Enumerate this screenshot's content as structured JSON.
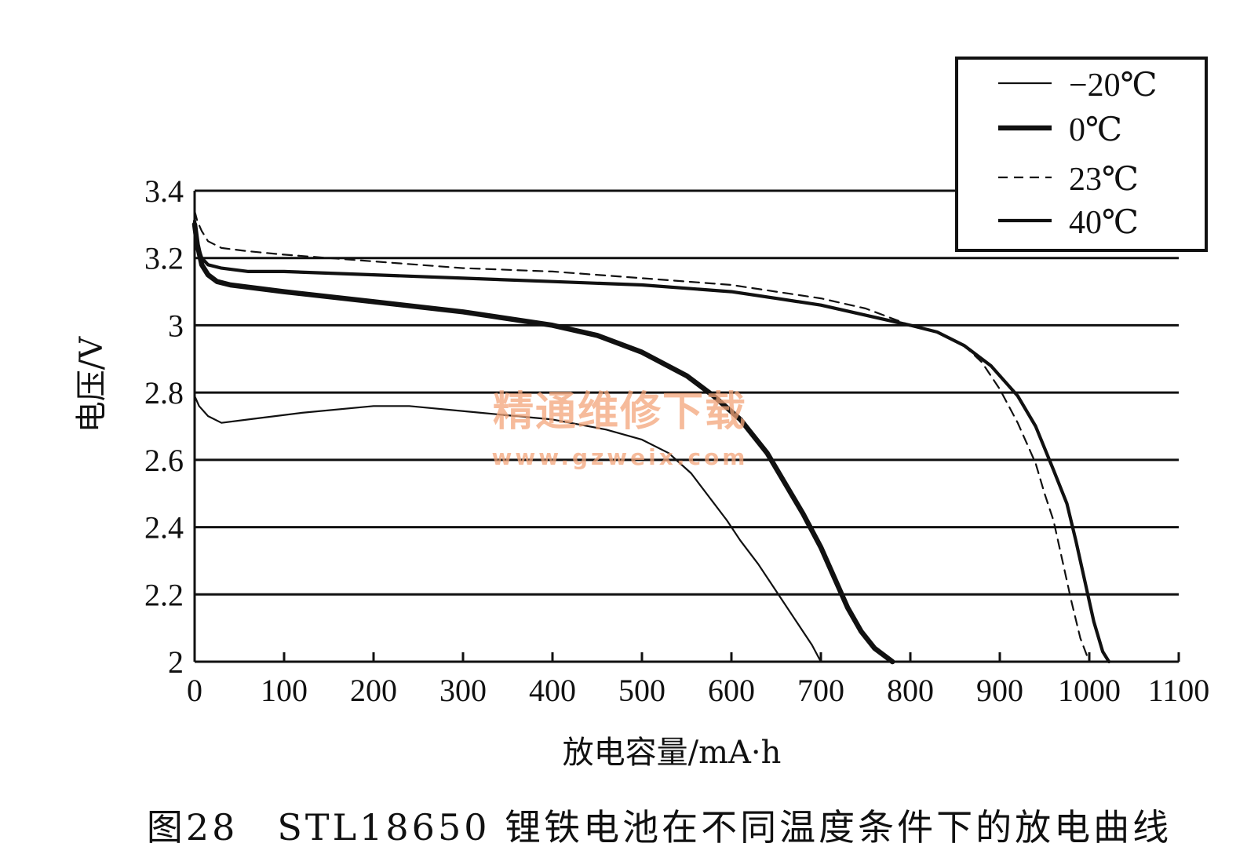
{
  "caption": "图28　STL18650 锂铁电池在不同温度条件下的放电曲线",
  "watermark": {
    "main": "精通维修下载",
    "url": "www.gzweix.com"
  },
  "colors": {
    "line": "#111111",
    "grid": "#111111",
    "watermark": "#f4a57a"
  },
  "chart_data": {
    "type": "line",
    "title": "",
    "xlabel": "放电容量/mA·h",
    "ylabel": "电压/V",
    "xlim": [
      0,
      1100
    ],
    "ylim": [
      2,
      3.4
    ],
    "x_ticks": [
      0,
      100,
      200,
      300,
      400,
      500,
      600,
      700,
      800,
      900,
      1000,
      1100
    ],
    "x_tick_labels": [
      "0",
      "100",
      "200",
      "300",
      "400",
      "500",
      "600",
      "700",
      "800",
      "900",
      "1000",
      "1100"
    ],
    "y_ticks": [
      2,
      2.2,
      2.4,
      2.6,
      2.8,
      3,
      3.2,
      3.4
    ],
    "y_tick_labels": [
      "2",
      "2.2",
      "2.4",
      "2.6",
      "2.8",
      "3",
      "3.2",
      "3.4"
    ],
    "grid": "horizontal",
    "legend_position": "top-right",
    "series": [
      {
        "name": "−20℃",
        "style": "thin",
        "x": [
          0,
          5,
          15,
          30,
          60,
          120,
          200,
          240,
          320,
          400,
          460,
          500,
          530,
          555,
          575,
          595,
          610,
          630,
          650,
          670,
          690,
          700
        ],
        "y": [
          2.79,
          2.76,
          2.73,
          2.71,
          2.72,
          2.74,
          2.76,
          2.76,
          2.74,
          2.72,
          2.69,
          2.66,
          2.62,
          2.56,
          2.49,
          2.42,
          2.36,
          2.29,
          2.21,
          2.13,
          2.05,
          2.0
        ]
      },
      {
        "name": "0℃",
        "style": "bold",
        "x": [
          0,
          3,
          8,
          15,
          25,
          40,
          100,
          200,
          300,
          400,
          450,
          500,
          550,
          580,
          610,
          640,
          660,
          680,
          700,
          710,
          720,
          730,
          745,
          760,
          775,
          780
        ],
        "y": [
          3.3,
          3.24,
          3.18,
          3.15,
          3.13,
          3.12,
          3.1,
          3.07,
          3.04,
          3.0,
          2.97,
          2.92,
          2.85,
          2.79,
          2.72,
          2.62,
          2.53,
          2.44,
          2.34,
          2.28,
          2.22,
          2.16,
          2.09,
          2.04,
          2.01,
          2.0
        ]
      },
      {
        "name": "23℃",
        "style": "dashed",
        "x": [
          0,
          3,
          8,
          15,
          30,
          60,
          100,
          200,
          300,
          400,
          500,
          600,
          650,
          700,
          750,
          800,
          830,
          860,
          880,
          900,
          920,
          940,
          950,
          960,
          970,
          980,
          990,
          1000
        ],
        "y": [
          3.34,
          3.31,
          3.28,
          3.25,
          3.23,
          3.22,
          3.21,
          3.19,
          3.17,
          3.16,
          3.14,
          3.12,
          3.1,
          3.08,
          3.05,
          3.0,
          2.98,
          2.94,
          2.89,
          2.81,
          2.71,
          2.59,
          2.5,
          2.42,
          2.3,
          2.18,
          2.07,
          2.0
        ]
      },
      {
        "name": "40℃",
        "style": "medium",
        "x": [
          0,
          3,
          8,
          15,
          30,
          60,
          100,
          200,
          300,
          400,
          500,
          600,
          650,
          700,
          750,
          800,
          830,
          860,
          890,
          920,
          940,
          960,
          975,
          985,
          995,
          1005,
          1015,
          1022
        ],
        "y": [
          3.31,
          3.24,
          3.2,
          3.18,
          3.17,
          3.16,
          3.16,
          3.15,
          3.14,
          3.13,
          3.12,
          3.1,
          3.08,
          3.06,
          3.03,
          3.0,
          2.98,
          2.94,
          2.88,
          2.79,
          2.7,
          2.57,
          2.47,
          2.36,
          2.24,
          2.12,
          2.03,
          2.0
        ]
      }
    ]
  }
}
